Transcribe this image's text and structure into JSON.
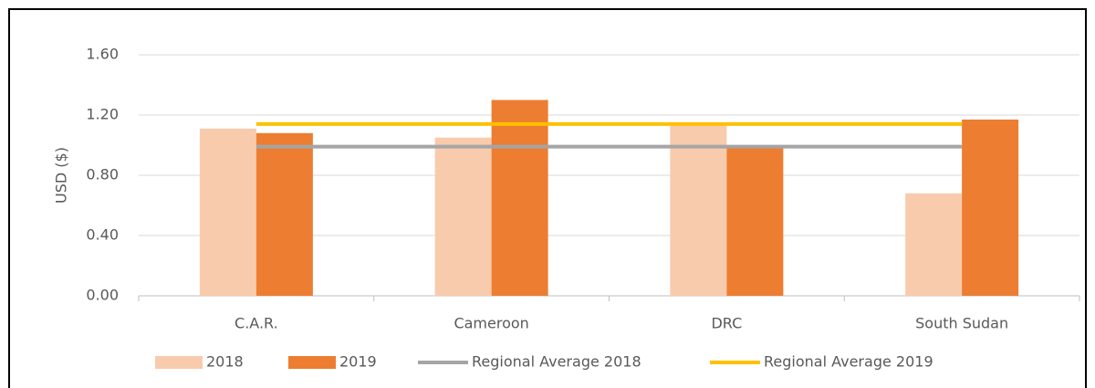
{
  "chart_data": {
    "type": "bar",
    "y_label": "USD ($)",
    "categories": [
      "C.A.R.",
      "Cameroon",
      "DRC",
      "South Sudan"
    ],
    "series": [
      {
        "name": "2018",
        "type": "bar",
        "color": "#f8cbad",
        "values": [
          1.11,
          1.05,
          1.14,
          0.68
        ]
      },
      {
        "name": "2019",
        "type": "bar",
        "color": "#ed7d31",
        "values": [
          1.08,
          1.3,
          0.98,
          1.17
        ]
      },
      {
        "name": "Regional Average 2018",
        "type": "line",
        "color": "#a5a5a5",
        "values": [
          0.99,
          0.99,
          0.99,
          0.99
        ]
      },
      {
        "name": "Regional Average 2019",
        "type": "line",
        "color": "#ffc000",
        "values": [
          1.14,
          1.14,
          1.14,
          1.14
        ]
      }
    ],
    "ylim": [
      0,
      1.6
    ],
    "yticks": [
      {
        "value": 0,
        "label": "0.00"
      },
      {
        "value": 0.4,
        "label": "0.40"
      },
      {
        "value": 0.8,
        "label": "0.80"
      },
      {
        "value": 1.2,
        "label": "1.20"
      },
      {
        "value": 1.6,
        "label": "1.60"
      }
    ],
    "grid": true,
    "legend": "bottom"
  }
}
